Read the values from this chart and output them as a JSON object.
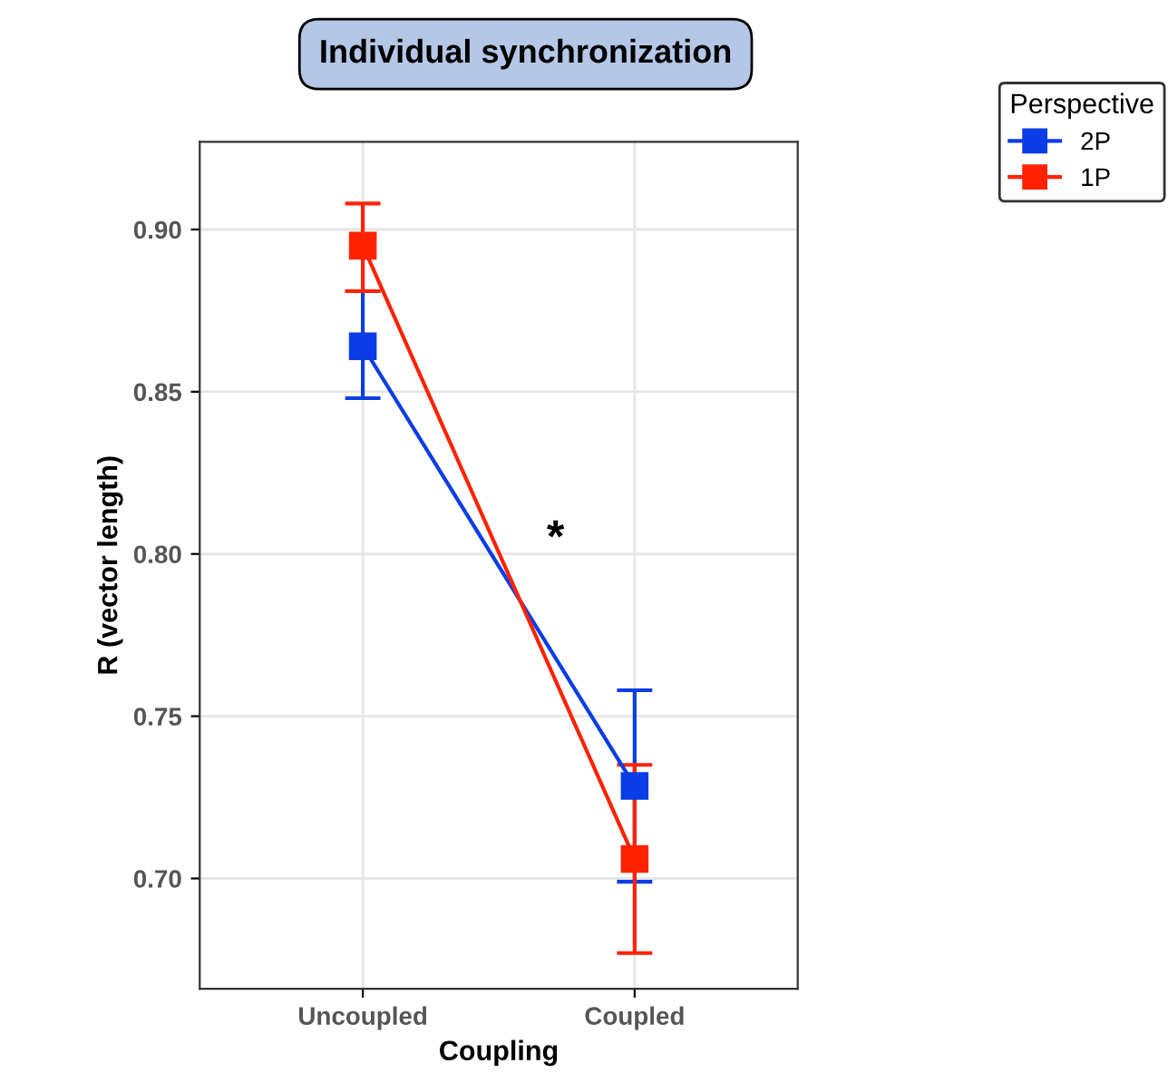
{
  "chart_data": {
    "type": "line",
    "title": "Individual synchronization",
    "xlabel": "Coupling",
    "ylabel": "R (vector length)",
    "legend_title": "Perspective",
    "categories": [
      "Uncoupled",
      "Coupled"
    ],
    "series": [
      {
        "name": "2P",
        "color": "#0a3de6",
        "values": [
          0.864,
          0.7285
        ],
        "errors": [
          [
            0.848,
            0.881
          ],
          [
            0.699,
            0.758
          ]
        ]
      },
      {
        "name": "1P",
        "color": "#ff2200",
        "values": [
          0.895,
          0.706
        ],
        "errors": [
          [
            0.881,
            0.908
          ],
          [
            0.677,
            0.735
          ]
        ]
      }
    ],
    "ylim": [
      0.666,
      0.927
    ],
    "yticks": [
      {
        "value": 0.7,
        "label": "0.70"
      },
      {
        "value": 0.75,
        "label": "0.75"
      },
      {
        "value": 0.8,
        "label": "0.80"
      },
      {
        "value": 0.85,
        "label": "0.85"
      },
      {
        "value": 0.9,
        "label": "0.90"
      }
    ],
    "annotations": [
      "*"
    ],
    "grid": true,
    "legend": "right",
    "marker": "square",
    "line_style": "solid"
  }
}
